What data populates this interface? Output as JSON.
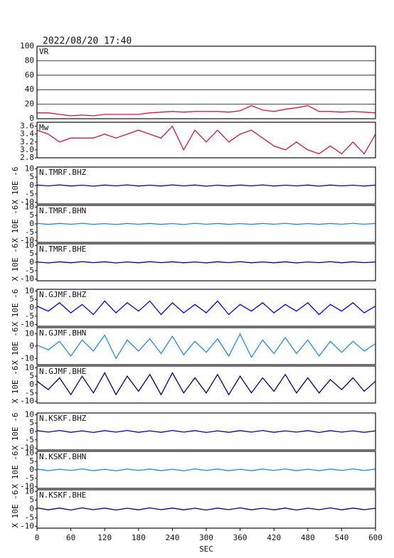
{
  "title": "2022/08/20 17:40",
  "chart_data": [
    {
      "type": "line",
      "label": "VR",
      "x": [
        0,
        20,
        40,
        60,
        80,
        100,
        120,
        140,
        160,
        180,
        200,
        220,
        240,
        260,
        280,
        300,
        320,
        340,
        360,
        380,
        400,
        420,
        440,
        460,
        480,
        500,
        520,
        540,
        560,
        580,
        600
      ],
      "xlim": [
        0,
        600
      ],
      "ylim": [
        0,
        100
      ],
      "yticks": [
        0,
        20,
        40,
        60,
        80,
        100
      ],
      "grid": true,
      "series": [
        {
          "color": "#dc143c",
          "values": [
            8,
            8,
            6,
            4,
            5,
            4,
            6,
            6,
            6,
            6,
            8,
            9,
            10,
            9,
            10,
            10,
            10,
            9,
            11,
            18,
            12,
            10,
            13,
            15,
            18,
            10,
            10,
            9,
            10,
            9,
            8
          ]
        }
      ]
    },
    {
      "type": "line",
      "label": "Mw",
      "x": [
        0,
        20,
        40,
        60,
        80,
        100,
        120,
        140,
        160,
        180,
        200,
        220,
        240,
        260,
        280,
        300,
        320,
        340,
        360,
        380,
        400,
        420,
        440,
        460,
        480,
        500,
        520,
        540,
        560,
        580,
        600
      ],
      "xlim": [
        0,
        600
      ],
      "ylim": [
        2.8,
        3.7
      ],
      "yticks": [
        2.8,
        {
          "value": 3,
          "label": "3.0"
        },
        3.2,
        3.4,
        3.6
      ],
      "grid": false,
      "series": [
        {
          "color": "#dc143c",
          "values": [
            3.5,
            3.4,
            3.2,
            3.3,
            3.3,
            3.3,
            3.4,
            3.3,
            3.4,
            3.5,
            3.4,
            3.3,
            3.6,
            3.0,
            3.5,
            3.2,
            3.5,
            3.2,
            3.4,
            3.5,
            3.3,
            3.1,
            3.0,
            3.2,
            3.0,
            2.9,
            3.1,
            2.9,
            3.2,
            2.9,
            3.4
          ]
        }
      ]
    },
    {
      "type": "line",
      "label": "N.TMRF.BHZ",
      "ylabel": "X 10E -6",
      "x": [
        0,
        20,
        40,
        60,
        80,
        100,
        120,
        140,
        160,
        180,
        200,
        220,
        240,
        260,
        280,
        300,
        320,
        340,
        360,
        380,
        400,
        420,
        440,
        460,
        480,
        500,
        520,
        540,
        560,
        580,
        600
      ],
      "xlim": [
        0,
        600
      ],
      "ylim": [
        -11,
        11
      ],
      "yticks": [
        -10,
        -5,
        0,
        5,
        10
      ],
      "grid": false,
      "series": [
        {
          "color": "#0000cd",
          "values": [
            0.3,
            -0.2,
            0.4,
            -0.3,
            0.2,
            -0.4,
            0.3,
            -0.2,
            0.4,
            -0.3,
            0.2,
            -0.3,
            0.4,
            -0.2,
            0.3,
            -0.4,
            0.2,
            -0.3,
            0.3,
            -0.2,
            0.4,
            -0.3,
            0.2,
            -0.2,
            0.3,
            -0.4,
            0.3,
            -0.2,
            0.2,
            -0.3,
            0.2
          ]
        }
      ]
    },
    {
      "type": "line",
      "label": "N.TMRF.BHN",
      "ylabel": "X 10E -6",
      "x": [
        0,
        20,
        40,
        60,
        80,
        100,
        120,
        140,
        160,
        180,
        200,
        220,
        240,
        260,
        280,
        300,
        320,
        340,
        360,
        380,
        400,
        420,
        440,
        460,
        480,
        500,
        520,
        540,
        560,
        580,
        600
      ],
      "xlim": [
        0,
        600
      ],
      "ylim": [
        -11,
        11
      ],
      "yticks": [
        -10,
        -5,
        0,
        5,
        10
      ],
      "grid": false,
      "series": [
        {
          "color": "#1e8fe0",
          "values": [
            0.4,
            -0.3,
            0.3,
            -0.2,
            0.4,
            -0.3,
            0.2,
            -0.4,
            0.3,
            -0.2,
            0.3,
            -0.3,
            0.2,
            -0.4,
            0.4,
            -0.2,
            0.3,
            -0.3,
            0.2,
            -0.3,
            0.3,
            -0.2,
            0.4,
            -0.3,
            0.2,
            -0.3,
            0.3,
            -0.2,
            0.4,
            -0.2,
            0.3
          ]
        }
      ]
    },
    {
      "type": "line",
      "label": "N.TMRF.BHE",
      "ylabel": "X 10E -6",
      "x": [
        0,
        20,
        40,
        60,
        80,
        100,
        120,
        140,
        160,
        180,
        200,
        220,
        240,
        260,
        280,
        300,
        320,
        340,
        360,
        380,
        400,
        420,
        440,
        460,
        480,
        500,
        520,
        540,
        560,
        580,
        600
      ],
      "xlim": [
        0,
        600
      ],
      "ylim": [
        -11,
        11
      ],
      "yticks": [
        -10,
        -5,
        0,
        5,
        10
      ],
      "grid": false,
      "series": [
        {
          "color": "#000080",
          "values": [
            0.2,
            -0.4,
            0.3,
            -0.3,
            0.4,
            -0.2,
            0.3,
            -0.4,
            0.2,
            -0.3,
            0.4,
            -0.2,
            0.3,
            -0.3,
            0.2,
            -0.4,
            0.3,
            -0.2,
            0.4,
            -0.3,
            0.2,
            -0.3,
            0.3,
            -0.4,
            0.2,
            -0.2,
            0.4,
            -0.3,
            0.3,
            -0.2,
            0.2
          ]
        }
      ]
    },
    {
      "type": "line",
      "label": "N.GJMF.BHZ",
      "ylabel": "X 10E -6",
      "x": [
        0,
        20,
        40,
        60,
        80,
        100,
        120,
        140,
        160,
        180,
        200,
        220,
        240,
        260,
        280,
        300,
        320,
        340,
        360,
        380,
        400,
        420,
        440,
        460,
        480,
        500,
        520,
        540,
        560,
        580,
        600
      ],
      "xlim": [
        0,
        600
      ],
      "ylim": [
        -11,
        11
      ],
      "yticks": [
        -10,
        -5,
        0,
        5,
        10
      ],
      "grid": false,
      "series": [
        {
          "color": "#0000ff",
          "values": [
            1,
            -2,
            3,
            -3,
            2,
            -4,
            4,
            -3,
            3,
            -2,
            4,
            -4,
            3,
            -3,
            2,
            -3,
            4,
            -4,
            2,
            -2,
            3,
            -3,
            2,
            -2,
            3,
            -4,
            2,
            -2,
            3,
            -3,
            1
          ]
        }
      ]
    },
    {
      "type": "line",
      "label": "N.GJMF.BHN",
      "ylabel": "X 10E -6",
      "x": [
        0,
        20,
        40,
        60,
        80,
        100,
        120,
        140,
        160,
        180,
        200,
        220,
        240,
        260,
        280,
        300,
        320,
        340,
        360,
        380,
        400,
        420,
        440,
        460,
        480,
        500,
        520,
        540,
        560,
        580,
        600
      ],
      "xlim": [
        0,
        600
      ],
      "ylim": [
        -15,
        15
      ],
      "yticks": [
        -10,
        0,
        10
      ],
      "grid": false,
      "series": [
        {
          "color": "#1e8fe0",
          "values": [
            1,
            -3,
            4,
            -8,
            5,
            -4,
            9,
            -10,
            5,
            -4,
            6,
            -6,
            8,
            -7,
            4,
            -5,
            6,
            -8,
            10,
            -9,
            5,
            -6,
            7,
            -6,
            5,
            -8,
            4,
            -5,
            4,
            -4,
            2
          ]
        }
      ]
    },
    {
      "type": "line",
      "label": "N.GJMF.BHE",
      "ylabel": "X 10E -6",
      "x": [
        0,
        20,
        40,
        60,
        80,
        100,
        120,
        140,
        160,
        180,
        200,
        220,
        240,
        260,
        280,
        300,
        320,
        340,
        360,
        380,
        400,
        420,
        440,
        460,
        480,
        500,
        520,
        540,
        560,
        580,
        600
      ],
      "xlim": [
        0,
        600
      ],
      "ylim": [
        -11,
        11
      ],
      "yticks": [
        -10,
        -5,
        0,
        5,
        10
      ],
      "grid": false,
      "series": [
        {
          "color": "#000080",
          "values": [
            2,
            -3,
            4,
            -6,
            5,
            -5,
            7,
            -6,
            5,
            -4,
            6,
            -6,
            7,
            -5,
            4,
            -5,
            6,
            -6,
            5,
            -5,
            4,
            -4,
            6,
            -5,
            4,
            -5,
            3,
            -3,
            4,
            -4,
            2
          ]
        }
      ]
    },
    {
      "type": "line",
      "label": "N.KSKF.BHZ",
      "ylabel": "X 10E -6",
      "x": [
        0,
        20,
        40,
        60,
        80,
        100,
        120,
        140,
        160,
        180,
        200,
        220,
        240,
        260,
        280,
        300,
        320,
        340,
        360,
        380,
        400,
        420,
        440,
        460,
        480,
        500,
        520,
        540,
        560,
        580,
        600
      ],
      "xlim": [
        0,
        600
      ],
      "ylim": [
        -11,
        11
      ],
      "yticks": [
        -10,
        -5,
        0,
        5,
        10
      ],
      "grid": false,
      "series": [
        {
          "color": "#0000cd",
          "values": [
            0.5,
            -0.4,
            0.6,
            -0.5,
            0.4,
            -0.6,
            0.5,
            -0.4,
            0.6,
            -0.5,
            0.4,
            -0.5,
            0.6,
            -0.4,
            0.5,
            -0.6,
            0.4,
            -0.5,
            0.5,
            -0.4,
            0.6,
            -0.5,
            0.4,
            -0.4,
            0.5,
            -0.6,
            0.5,
            -0.4,
            0.4,
            -0.5,
            0.4
          ]
        }
      ]
    },
    {
      "type": "line",
      "label": "N.KSKF.BHN",
      "ylabel": "X 10E -6",
      "x": [
        0,
        20,
        40,
        60,
        80,
        100,
        120,
        140,
        160,
        180,
        200,
        220,
        240,
        260,
        280,
        300,
        320,
        340,
        360,
        380,
        400,
        420,
        440,
        460,
        480,
        500,
        520,
        540,
        560,
        580,
        600
      ],
      "xlim": [
        0,
        600
      ],
      "ylim": [
        -11,
        11
      ],
      "yticks": [
        -10,
        -5,
        0,
        5,
        10
      ],
      "grid": false,
      "series": [
        {
          "color": "#1e8fe0",
          "values": [
            0.5,
            -0.5,
            0.4,
            -0.4,
            0.6,
            -0.5,
            0.4,
            -0.6,
            0.5,
            -0.4,
            0.5,
            -0.5,
            0.4,
            -0.6,
            0.6,
            -0.4,
            0.5,
            -0.5,
            0.4,
            -0.5,
            0.5,
            -0.4,
            0.6,
            -0.5,
            0.4,
            -0.5,
            0.5,
            -0.4,
            0.6,
            -0.4,
            0.5
          ]
        }
      ]
    },
    {
      "type": "line",
      "label": "N.KSKF.BHE",
      "ylabel": "X 10E -6",
      "x": [
        0,
        20,
        40,
        60,
        80,
        100,
        120,
        140,
        160,
        180,
        200,
        220,
        240,
        260,
        280,
        300,
        320,
        340,
        360,
        380,
        400,
        420,
        440,
        460,
        480,
        500,
        520,
        540,
        560,
        580,
        600
      ],
      "xlim": [
        0,
        600
      ],
      "ylim": [
        -11,
        11
      ],
      "yticks": [
        -10,
        -5,
        0,
        5,
        10
      ],
      "grid": false,
      "xlabel": "SEC",
      "xticks": [
        0,
        60,
        120,
        180,
        240,
        300,
        360,
        420,
        480,
        540,
        600
      ],
      "series": [
        {
          "color": "#000080",
          "values": [
            0.6,
            -0.5,
            0.5,
            -0.6,
            0.6,
            -0.4,
            0.5,
            -0.6,
            0.4,
            -0.5,
            0.6,
            -0.4,
            0.5,
            -0.5,
            0.4,
            -0.6,
            0.5,
            -0.4,
            0.6,
            -0.5,
            0.4,
            -0.5,
            0.5,
            -0.6,
            0.4,
            -0.4,
            0.6,
            -0.5,
            0.5,
            -0.4,
            0.4
          ]
        }
      ]
    }
  ]
}
